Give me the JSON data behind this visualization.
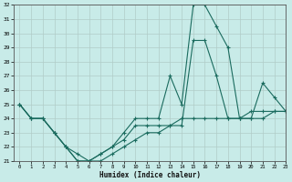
{
  "xlabel": "Humidex (Indice chaleur)",
  "bg_color": "#c8ebe8",
  "grid_color": "#c0d8d4",
  "line_color": "#1a6b5e",
  "ylim": [
    21,
    32
  ],
  "xlim": [
    -0.5,
    23
  ],
  "yticks": [
    21,
    22,
    23,
    24,
    25,
    26,
    27,
    28,
    29,
    30,
    31,
    32
  ],
  "xticks": [
    0,
    1,
    2,
    3,
    4,
    5,
    6,
    7,
    8,
    9,
    10,
    11,
    12,
    13,
    14,
    15,
    16,
    17,
    18,
    19,
    20,
    21,
    22,
    23
  ],
  "series1_x": [
    0,
    1,
    2,
    3,
    4,
    5,
    6,
    7,
    8,
    9,
    10,
    11,
    12,
    13,
    14,
    15,
    16,
    17,
    18,
    19,
    20,
    21,
    22,
    23
  ],
  "series1_y": [
    25,
    24,
    24,
    23,
    22,
    21,
    21,
    21.5,
    22,
    23,
    24,
    24,
    24,
    27,
    25,
    32,
    32,
    30.5,
    29,
    24,
    24,
    26.5,
    25.5,
    24.5
  ],
  "series2_x": [
    0,
    1,
    2,
    3,
    4,
    5,
    6,
    7,
    8,
    9,
    10,
    11,
    12,
    13,
    14,
    15,
    16,
    17,
    18,
    19,
    20,
    21,
    22,
    23
  ],
  "series2_y": [
    25,
    24,
    24,
    23,
    22,
    21,
    21,
    21.5,
    22,
    22.5,
    23.5,
    23.5,
    23.5,
    23.5,
    24,
    24,
    24,
    24,
    24,
    24,
    24.5,
    24.5,
    24.5,
    24.5
  ],
  "series3_x": [
    0,
    1,
    2,
    3,
    4,
    5,
    6,
    7,
    8,
    9,
    10,
    11,
    12,
    13,
    14,
    15,
    16,
    17,
    18,
    19,
    20,
    21,
    22,
    23
  ],
  "series3_y": [
    25,
    24,
    24,
    23,
    22,
    21.5,
    21,
    21,
    21.5,
    22,
    22.5,
    23,
    23,
    23.5,
    23.5,
    29.5,
    29.5,
    27,
    24,
    24,
    24,
    24,
    24.5,
    24.5
  ]
}
